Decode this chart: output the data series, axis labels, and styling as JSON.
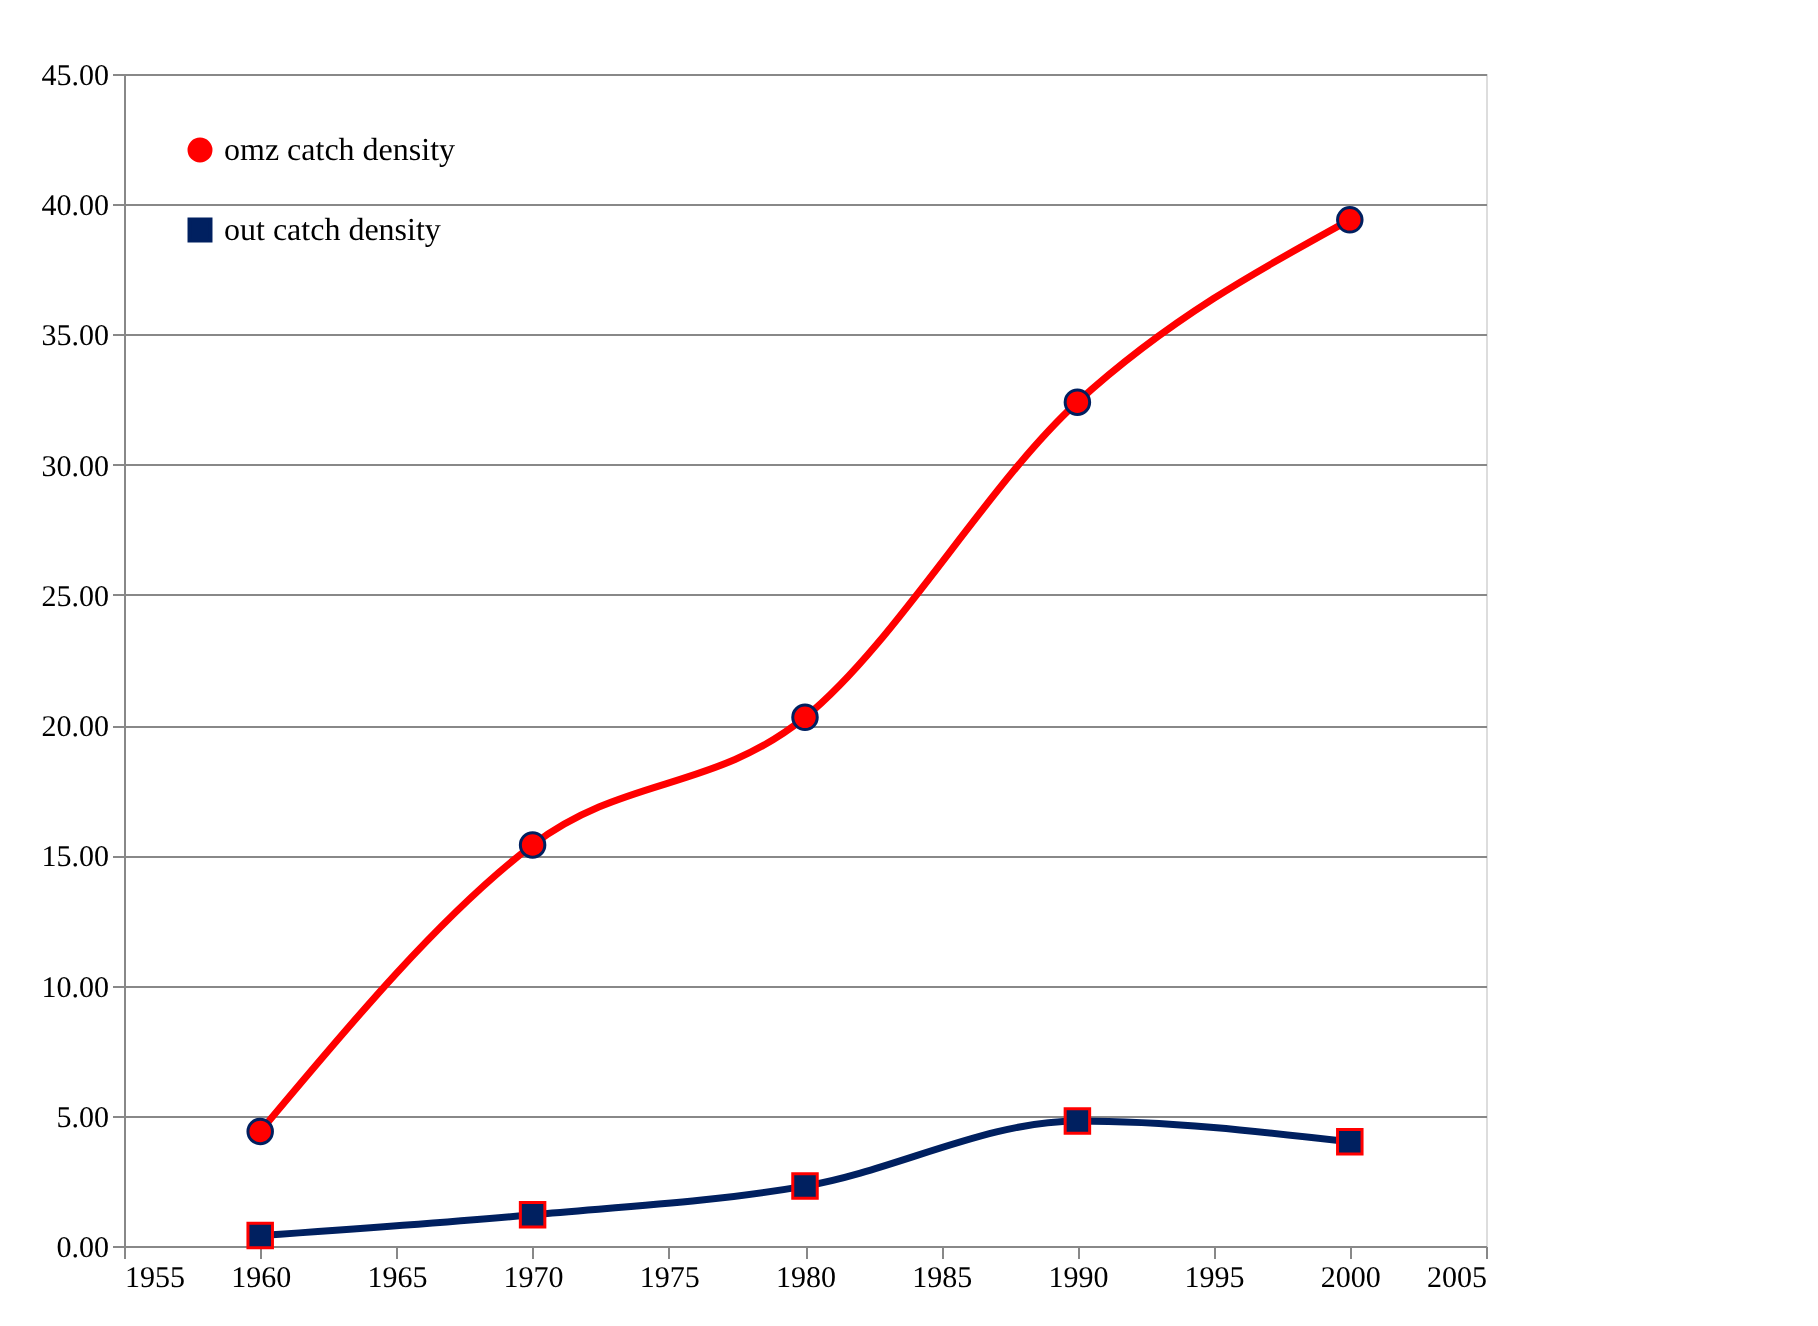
{
  "chart_data": {
    "type": "line",
    "x": [
      1960,
      1970,
      1980,
      1990,
      2000
    ],
    "series": [
      {
        "name": "omz catch density",
        "color": "#ff0000",
        "marker": "circle",
        "values": [
          4.4,
          15.4,
          20.3,
          32.4,
          39.4
        ]
      },
      {
        "name": "out catch density",
        "color": "#002060",
        "marker": "square",
        "values": [
          0.4,
          1.2,
          2.3,
          4.8,
          4.0
        ]
      }
    ],
    "xlim": [
      1955,
      2005
    ],
    "xticks": [
      1955,
      1960,
      1965,
      1970,
      1975,
      1980,
      1985,
      1990,
      1995,
      2000,
      2005
    ],
    "ylim": [
      0,
      45
    ],
    "yticks": [
      {
        "value": 0,
        "label": "0.00"
      },
      {
        "value": 5,
        "label": "5.00"
      },
      {
        "value": 10,
        "label": "10.00"
      },
      {
        "value": 15,
        "label": "15.00"
      },
      {
        "value": 20,
        "label": "20.00"
      },
      {
        "value": 25,
        "label": "25.00"
      },
      {
        "value": 30,
        "label": "30.00"
      },
      {
        "value": 35,
        "label": "35.00"
      },
      {
        "value": 40,
        "label": "40.00"
      },
      {
        "value": 45,
        "label": "45.00"
      }
    ],
    "grid": "y",
    "legend": "top left",
    "line_style": "solid"
  }
}
